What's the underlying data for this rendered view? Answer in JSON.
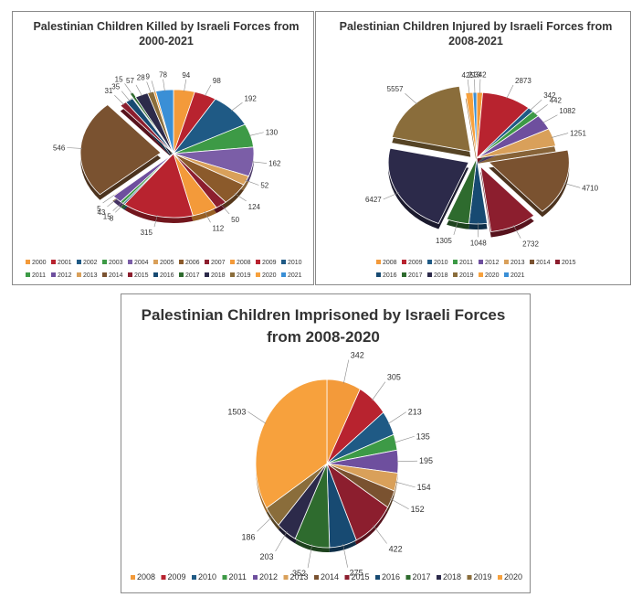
{
  "charts": [
    {
      "title_lines": [
        "Palestinian Children Killed by Israeli Forces from",
        "2000-2021"
      ],
      "chart_data": {
        "type": "pie",
        "title": "Palestinian Children Killed by Israeli Forces from 2000-2021",
        "categories": [
          "2000",
          "2001",
          "2002",
          "2003",
          "2004",
          "2005",
          "2006",
          "2007",
          "2008",
          "2009",
          "2010",
          "2011",
          "2012",
          "2013",
          "2014",
          "2015",
          "2016",
          "2017",
          "2018",
          "2019",
          "2020",
          "2021"
        ],
        "values": [
          94,
          98,
          192,
          130,
          162,
          52,
          124,
          50,
          112,
          315,
          8,
          15,
          43,
          5,
          546,
          31,
          35,
          15,
          57,
          28,
          9,
          78
        ],
        "legend_position": "bottom"
      }
    },
    {
      "title_lines": [
        "Palestinian Children Injured by Israeli Forces from",
        "2008-2021"
      ],
      "chart_data": {
        "type": "pie",
        "title": "Palestinian Children Injured by Israeli Forces from 2008-2021",
        "categories": [
          "2008",
          "2009",
          "2010",
          "2011",
          "2012",
          "2013",
          "2014",
          "2015",
          "2016",
          "2017",
          "2018",
          "2019",
          "2020",
          "2021"
        ],
        "values": [
          342,
          2873,
          342,
          442,
          1082,
          1251,
          4710,
          2732,
          1048,
          1305,
          6427,
          5557,
          425,
          213
        ],
        "legend_position": "bottom"
      }
    },
    {
      "title_lines": [
        "Palestinian Children Imprisoned by Israeli Forces",
        "from 2008-2020"
      ],
      "chart_data": {
        "type": "pie",
        "title": "Palestinian Children Imprisoned by Israeli Forces from 2008-2020",
        "categories": [
          "2008",
          "2009",
          "2010",
          "2011",
          "2012",
          "2013",
          "2014",
          "2015",
          "2016",
          "2017",
          "2018",
          "2019",
          "2020"
        ],
        "values": [
          342,
          305,
          213,
          135,
          195,
          154,
          152,
          422,
          275,
          352,
          203,
          186,
          1503
        ],
        "legend_position": "bottom"
      }
    }
  ],
  "colors": {
    "2000": "#f39a3a",
    "2001": "#b8232f",
    "2002": "#1f5a85",
    "2003": "#3d9a46",
    "2004": "#7b5ea7",
    "2005": "#d9a05a",
    "2006": "#8b5a2b",
    "2007": "#8c1e2e",
    "2008": "#f39a3a",
    "2009": "#b8232f",
    "2010": "#1f5a85",
    "2011": "#3d9a46",
    "2012": "#6e4f9e",
    "2013": "#d9a05a",
    "2014": "#7a5230",
    "2015": "#8c1e2e",
    "2016": "#174a72",
    "2017": "#2e6b2e",
    "2018": "#2c2a4a",
    "2019": "#8a6d3b",
    "2020": "#f7a13d",
    "2021": "#3a8fd6"
  }
}
